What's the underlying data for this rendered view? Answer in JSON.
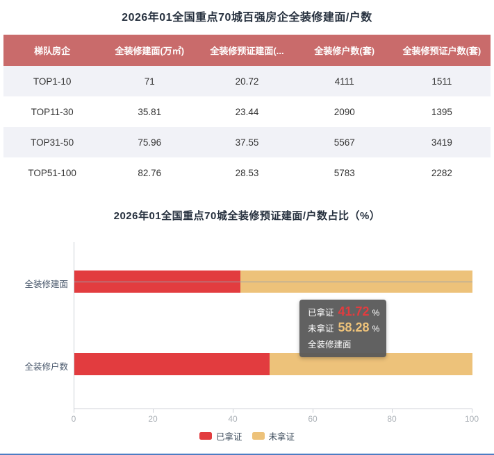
{
  "table_section": {
    "title": "2026年01全国重点70城百强房企全装修建面/户数",
    "table": {
      "header_bg": "#c96b6b",
      "stripe_bg": "#f1f2f7",
      "columns": [
        "梯队房企",
        "全装修建面(万㎡)",
        "全装修预证建面(...",
        "全装修户数(套)",
        "全装修预证户数(套)"
      ],
      "rows": [
        [
          "TOP1-10",
          "71",
          "20.72",
          "4111",
          "1511"
        ],
        [
          "TOP11-30",
          "35.81",
          "23.44",
          "2090",
          "1395"
        ],
        [
          "TOP31-50",
          "75.96",
          "37.55",
          "5567",
          "3419"
        ],
        [
          "TOP51-100",
          "82.76",
          "28.53",
          "5783",
          "2282"
        ]
      ]
    }
  },
  "chart_section": {
    "title": "2026年01全国重点70城全装修预证建面/户数占比（%）"
  },
  "chart_data": {
    "type": "bar",
    "orientation": "horizontal",
    "stacked": true,
    "categories": [
      "全装修建面",
      "全装修户数"
    ],
    "series": [
      {
        "name": "已拿证",
        "color": "#e23c3f",
        "values": [
          41.72,
          49.04
        ]
      },
      {
        "name": "未拿证",
        "color": "#edc27a",
        "values": [
          58.28,
          50.96
        ]
      }
    ],
    "xlim": [
      0,
      100
    ],
    "x_ticks": [
      0,
      20,
      40,
      60,
      80,
      100
    ],
    "legend_position": "bottom",
    "grid": false,
    "tooltip": {
      "category": "全装修建面",
      "items": [
        {
          "label": "已拿证",
          "value": "41.72",
          "unit": "%"
        },
        {
          "label": "未拿证",
          "value": "58.28",
          "unit": "%"
        }
      ]
    }
  }
}
